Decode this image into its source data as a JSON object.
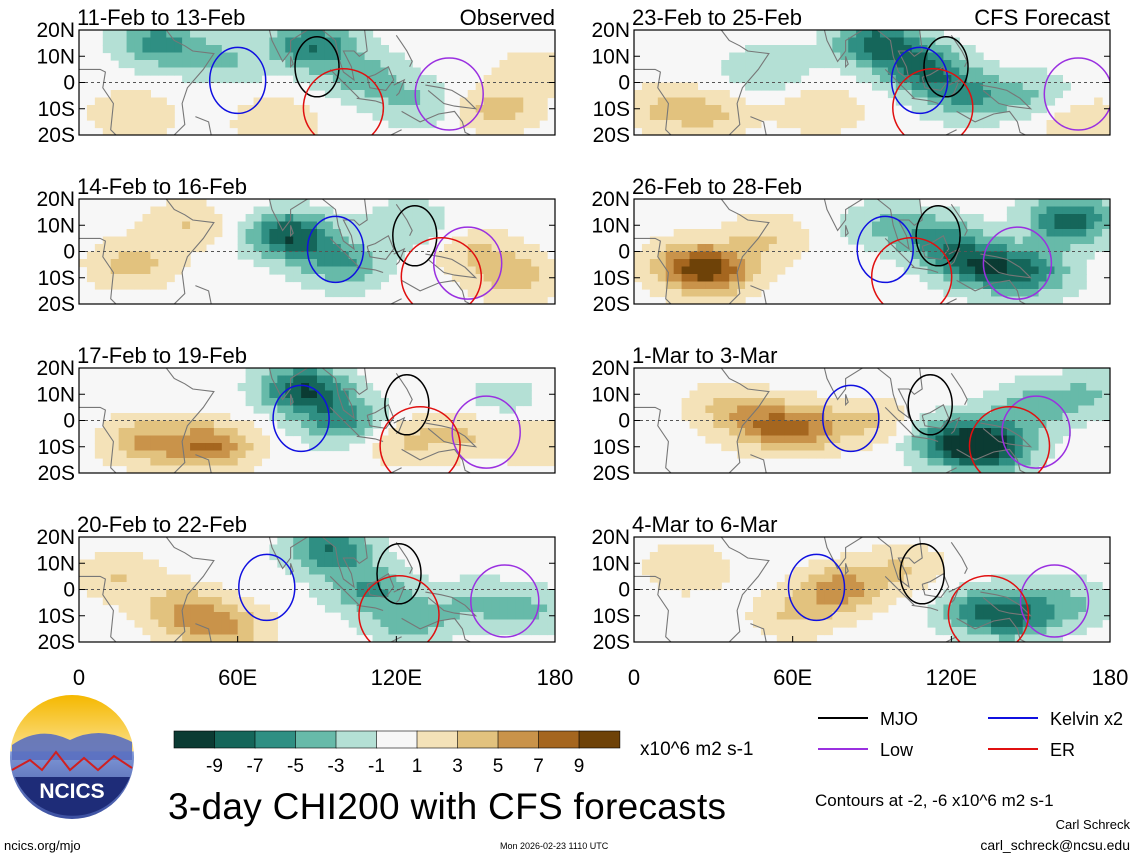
{
  "figure": {
    "title": "3-day CHI200 with CFS forecasts",
    "units": "x10^6 m2 s-1",
    "contour_note": "Contours at -2, -6 x10^6 m2 s-1",
    "author": "Carl Schreck",
    "email": "carl_schreck@ncsu.edu",
    "site": "ncics.org/mjo",
    "timestamp": "Mon 2026-02-23 1110 UTC",
    "logo_text": "NCICS"
  },
  "legend": {
    "items": [
      {
        "label": "MJO",
        "color": "#000000"
      },
      {
        "label": "Kelvin x2",
        "color": "#1010e0"
      },
      {
        "label": "Low",
        "color": "#9a30e0"
      },
      {
        "label": "ER",
        "color": "#e01010"
      }
    ]
  },
  "colorbar": {
    "ticks": [
      "-9",
      "-7",
      "-5",
      "-3",
      "-1",
      "1",
      "3",
      "5",
      "7",
      "9"
    ],
    "colors": [
      "#0b3b33",
      "#15665a",
      "#2f8f83",
      "#67baa9",
      "#b4e0d5",
      "#f7f7f7",
      "#f4e2b8",
      "#e2c27e",
      "#c9934a",
      "#a5661f",
      "#6e4208"
    ]
  },
  "axes": {
    "lat_labels": [
      "20N",
      "10N",
      "0",
      "10S",
      "20S"
    ],
    "lon_labels": [
      "0",
      "60E",
      "120E",
      "180"
    ]
  },
  "chart_data": [
    {
      "type": "heatmap",
      "title": "11-Feb to 13-Feb",
      "tag": "Observed",
      "column": "observed",
      "xlim": [
        0,
        180
      ],
      "ylim": [
        -20,
        20
      ],
      "centers": [
        [
          20,
          -12,
          3
        ],
        [
          30,
          15,
          -6
        ],
        [
          55,
          8,
          -3
        ],
        [
          75,
          -15,
          3
        ],
        [
          88,
          14,
          -7
        ],
        [
          108,
          2,
          -4
        ],
        [
          128,
          -8,
          -3
        ],
        [
          158,
          -10,
          4
        ],
        [
          172,
          5,
          2
        ]
      ]
    },
    {
      "type": "heatmap",
      "title": "14-Feb to 16-Feb",
      "tag": "",
      "column": "observed",
      "xlim": [
        0,
        180
      ],
      "ylim": [
        -20,
        20
      ],
      "centers": [
        [
          20,
          -5,
          4
        ],
        [
          40,
          10,
          3
        ],
        [
          80,
          6,
          -9
        ],
        [
          100,
          -5,
          -5
        ],
        [
          125,
          10,
          -3
        ],
        [
          150,
          0,
          3
        ],
        [
          165,
          -10,
          4
        ]
      ]
    },
    {
      "type": "heatmap",
      "title": "17-Feb to 19-Feb",
      "tag": "",
      "column": "observed",
      "xlim": [
        0,
        180
      ],
      "ylim": [
        -20,
        20
      ],
      "centers": [
        [
          25,
          -8,
          5
        ],
        [
          50,
          -10,
          7
        ],
        [
          85,
          12,
          -9
        ],
        [
          100,
          0,
          -6
        ],
        [
          122,
          -8,
          3
        ],
        [
          145,
          -5,
          3
        ],
        [
          160,
          8,
          -2
        ],
        [
          175,
          -8,
          3
        ]
      ]
    },
    {
      "type": "heatmap",
      "title": "20-Feb to 22-Feb",
      "tag": "",
      "column": "observed",
      "xlim": [
        0,
        180
      ],
      "ylim": [
        -20,
        20
      ],
      "centers": [
        [
          15,
          5,
          3
        ],
        [
          40,
          -8,
          5
        ],
        [
          55,
          -15,
          5
        ],
        [
          95,
          15,
          -7
        ],
        [
          110,
          0,
          -5
        ],
        [
          125,
          -12,
          -4
        ],
        [
          150,
          -5,
          -3
        ],
        [
          172,
          -8,
          -3
        ]
      ]
    },
    {
      "type": "heatmap",
      "title": "23-Feb to 25-Feb",
      "tag": "CFS Forecast",
      "column": "forecast",
      "xlim": [
        0,
        180
      ],
      "ylim": [
        -20,
        20
      ],
      "centers": [
        [
          10,
          -10,
          3
        ],
        [
          30,
          -12,
          3
        ],
        [
          50,
          5,
          -3
        ],
        [
          70,
          -10,
          3
        ],
        [
          92,
          15,
          -8
        ],
        [
          110,
          5,
          -7
        ],
        [
          125,
          -5,
          -5
        ],
        [
          150,
          -5,
          -3
        ],
        [
          170,
          -15,
          3
        ]
      ]
    },
    {
      "type": "heatmap",
      "title": "26-Feb to 28-Feb",
      "tag": "",
      "column": "forecast",
      "xlim": [
        0,
        180
      ],
      "ylim": [
        -20,
        20
      ],
      "centers": [
        [
          20,
          -5,
          5
        ],
        [
          30,
          -8,
          7
        ],
        [
          50,
          5,
          3
        ],
        [
          95,
          10,
          -3
        ],
        [
          115,
          5,
          -5
        ],
        [
          130,
          -5,
          -8
        ],
        [
          150,
          -8,
          -6
        ],
        [
          165,
          12,
          -8
        ]
      ]
    },
    {
      "type": "heatmap",
      "title": "1-Mar to 3-Mar",
      "tag": "",
      "column": "forecast",
      "xlim": [
        0,
        180
      ],
      "ylim": [
        -20,
        20
      ],
      "centers": [
        [
          35,
          5,
          3
        ],
        [
          50,
          -2,
          5
        ],
        [
          65,
          -3,
          5
        ],
        [
          90,
          0,
          3
        ],
        [
          120,
          -8,
          -7
        ],
        [
          135,
          -10,
          -9
        ],
        [
          150,
          5,
          -4
        ],
        [
          172,
          10,
          -3
        ]
      ]
    },
    {
      "type": "heatmap",
      "title": "4-Mar to 6-Mar",
      "tag": "",
      "column": "forecast",
      "xlim": [
        0,
        180
      ],
      "ylim": [
        -20,
        20
      ],
      "centers": [
        [
          20,
          8,
          3
        ],
        [
          60,
          -10,
          3
        ],
        [
          78,
          0,
          6
        ],
        [
          102,
          8,
          3
        ],
        [
          130,
          -8,
          -5
        ],
        [
          145,
          -10,
          -6
        ],
        [
          165,
          -5,
          -3
        ]
      ]
    }
  ]
}
